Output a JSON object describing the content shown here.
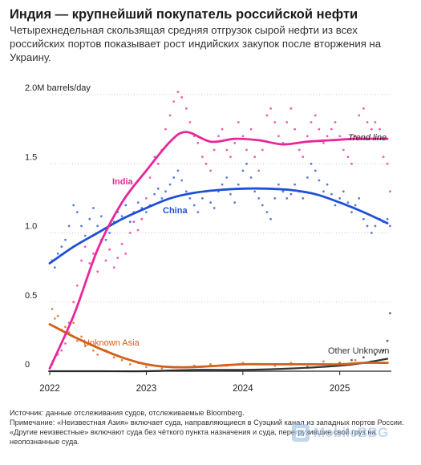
{
  "header": {
    "title": "Индия — крупнейший покупатель российской нефти",
    "subtitle": "Четырехнедельная скользящая средняя отгрузок сырой нефти из всех российских портов показывает рост индийских закупок после вторжения на Украину."
  },
  "footer": {
    "source": "Источник: данные отслеживания судов, отслеживаемые Bloomberg.",
    "note": "Примечание: «Неизвестная Азия» включает суда, направляющиеся в Суэцкий канал из западных портов России. «Другие неизвестные» включают суда без чёткого пункта назначения и суда, перегрузившие свой груз на неопознанные суда."
  },
  "watermark": {
    "text": "MobileBBG"
  },
  "chart_data": {
    "type": "line",
    "unit_label": "2.0M barrels/day",
    "x_ticks": [
      "2022",
      "2023",
      "2024",
      "2025"
    ],
    "y_ticks": [
      "0",
      "0.5",
      "1.0",
      "1.5",
      "2.0M barrels/day"
    ],
    "ylim": [
      0,
      2.0
    ],
    "xlim": [
      "2022-01-01",
      "2025-07-15"
    ],
    "grid": "horizontal-dotted",
    "colors": {
      "India": "#e8279a",
      "China": "#1f4fd8",
      "Unknown Asia": "#d2601a",
      "Other Unknown": "#333333",
      "axis": "#222222"
    },
    "annotations": {
      "trend_line": "Trend line",
      "other_unknown": "Other Unknown"
    },
    "series": [
      {
        "name": "India",
        "trend": [
          [
            "2022-01-01",
            0.02
          ],
          [
            "2022-04-01",
            0.4
          ],
          [
            "2022-07-01",
            0.88
          ],
          [
            "2022-10-01",
            1.22
          ],
          [
            "2023-01-01",
            1.45
          ],
          [
            "2023-04-01",
            1.66
          ],
          [
            "2023-06-01",
            1.73
          ],
          [
            "2023-09-01",
            1.66
          ],
          [
            "2023-12-01",
            1.68
          ],
          [
            "2024-03-01",
            1.67
          ],
          [
            "2024-06-01",
            1.64
          ],
          [
            "2024-09-01",
            1.66
          ],
          [
            "2024-12-01",
            1.67
          ],
          [
            "2025-03-01",
            1.68
          ],
          [
            "2025-06-30",
            1.68
          ]
        ],
        "points": [
          [
            "2022-01-10",
            0.05
          ],
          [
            "2022-01-20",
            0.1
          ],
          [
            "2022-02-01",
            0.12
          ],
          [
            "2022-02-15",
            0.15
          ],
          [
            "2022-03-01",
            0.2
          ],
          [
            "2022-03-15",
            0.35
          ],
          [
            "2022-04-01",
            0.5
          ],
          [
            "2022-04-15",
            0.62
          ],
          [
            "2022-05-01",
            0.8
          ],
          [
            "2022-05-15",
            0.9
          ],
          [
            "2022-06-01",
            0.78
          ],
          [
            "2022-06-15",
            0.85
          ],
          [
            "2022-07-01",
            0.72
          ],
          [
            "2022-07-15",
            0.95
          ],
          [
            "2022-08-01",
            0.8
          ],
          [
            "2022-08-15",
            0.88
          ],
          [
            "2022-09-01",
            0.75
          ],
          [
            "2022-09-15",
            0.82
          ],
          [
            "2022-10-01",
            0.92
          ],
          [
            "2022-10-15",
            0.85
          ],
          [
            "2022-11-01",
            1.0
          ],
          [
            "2022-11-15",
            1.08
          ],
          [
            "2022-12-01",
            1.02
          ],
          [
            "2022-12-15",
            1.1
          ],
          [
            "2023-01-01",
            1.25
          ],
          [
            "2023-01-15",
            1.4
          ],
          [
            "2023-02-01",
            1.55
          ],
          [
            "2023-02-15",
            1.5
          ],
          [
            "2023-03-01",
            1.6
          ],
          [
            "2023-03-15",
            1.75
          ],
          [
            "2023-04-01",
            1.85
          ],
          [
            "2023-04-15",
            1.95
          ],
          [
            "2023-05-01",
            2.02
          ],
          [
            "2023-05-15",
            1.98
          ],
          [
            "2023-06-01",
            1.9
          ],
          [
            "2023-06-15",
            1.8
          ],
          [
            "2023-07-01",
            1.7
          ],
          [
            "2023-07-15",
            1.65
          ],
          [
            "2023-08-01",
            1.55
          ],
          [
            "2023-08-15",
            1.5
          ],
          [
            "2023-09-01",
            1.45
          ],
          [
            "2023-09-15",
            1.6
          ],
          [
            "2023-10-01",
            1.7
          ],
          [
            "2023-10-15",
            1.75
          ],
          [
            "2023-11-01",
            1.6
          ],
          [
            "2023-11-15",
            1.55
          ],
          [
            "2023-12-01",
            1.65
          ],
          [
            "2023-12-15",
            1.8
          ],
          [
            "2024-01-01",
            1.7
          ],
          [
            "2024-01-15",
            1.6
          ],
          [
            "2024-02-01",
            1.75
          ],
          [
            "2024-02-15",
            1.55
          ],
          [
            "2024-03-01",
            1.45
          ],
          [
            "2024-03-15",
            1.6
          ],
          [
            "2024-04-01",
            1.85
          ],
          [
            "2024-04-15",
            1.9
          ],
          [
            "2024-05-01",
            1.8
          ],
          [
            "2024-05-15",
            1.7
          ],
          [
            "2024-06-01",
            1.65
          ],
          [
            "2024-06-15",
            1.8
          ],
          [
            "2024-07-01",
            1.9
          ],
          [
            "2024-07-15",
            1.75
          ],
          [
            "2024-08-01",
            1.6
          ],
          [
            "2024-08-15",
            1.55
          ],
          [
            "2024-09-01",
            1.7
          ],
          [
            "2024-09-15",
            1.8
          ],
          [
            "2024-10-01",
            1.85
          ],
          [
            "2024-10-15",
            1.75
          ],
          [
            "2024-11-01",
            1.65
          ],
          [
            "2024-11-15",
            1.7
          ],
          [
            "2024-12-01",
            1.75
          ],
          [
            "2024-12-15",
            1.8
          ],
          [
            "2025-01-01",
            1.7
          ],
          [
            "2025-01-15",
            1.6
          ],
          [
            "2025-02-01",
            1.55
          ],
          [
            "2025-02-15",
            1.5
          ],
          [
            "2025-03-01",
            1.7
          ],
          [
            "2025-03-15",
            1.85
          ],
          [
            "2025-04-01",
            1.9
          ],
          [
            "2025-04-15",
            1.8
          ],
          [
            "2025-05-01",
            1.75
          ],
          [
            "2025-05-15",
            1.8
          ],
          [
            "2025-06-01",
            1.75
          ],
          [
            "2025-06-15",
            1.55
          ],
          [
            "2025-06-30",
            1.5
          ],
          [
            "2025-07-10",
            1.3
          ]
        ]
      },
      {
        "name": "China",
        "trend": [
          [
            "2022-01-01",
            0.78
          ],
          [
            "2022-04-01",
            0.9
          ],
          [
            "2022-07-01",
            1.0
          ],
          [
            "2022-10-01",
            1.1
          ],
          [
            "2023-01-01",
            1.18
          ],
          [
            "2023-04-01",
            1.25
          ],
          [
            "2023-07-01",
            1.29
          ],
          [
            "2023-10-01",
            1.31
          ],
          [
            "2024-01-01",
            1.32
          ],
          [
            "2024-04-01",
            1.32
          ],
          [
            "2024-07-01",
            1.31
          ],
          [
            "2024-10-01",
            1.28
          ],
          [
            "2025-01-01",
            1.22
          ],
          [
            "2025-04-01",
            1.15
          ],
          [
            "2025-06-30",
            1.07
          ]
        ],
        "points": [
          [
            "2022-01-10",
            0.8
          ],
          [
            "2022-01-20",
            0.75
          ],
          [
            "2022-02-01",
            0.85
          ],
          [
            "2022-02-15",
            0.9
          ],
          [
            "2022-03-01",
            0.95
          ],
          [
            "2022-03-15",
            1.05
          ],
          [
            "2022-04-01",
            1.2
          ],
          [
            "2022-04-15",
            1.15
          ],
          [
            "2022-05-01",
            1.05
          ],
          [
            "2022-05-15",
            0.98
          ],
          [
            "2022-06-01",
            1.1
          ],
          [
            "2022-06-15",
            1.18
          ],
          [
            "2022-07-01",
            1.05
          ],
          [
            "2022-07-15",
            1.12
          ],
          [
            "2022-08-01",
            0.95
          ],
          [
            "2022-08-15",
            1.0
          ],
          [
            "2022-09-01",
            1.08
          ],
          [
            "2022-09-15",
            1.15
          ],
          [
            "2022-10-01",
            1.12
          ],
          [
            "2022-10-15",
            1.2
          ],
          [
            "2022-11-01",
            1.08
          ],
          [
            "2022-11-15",
            1.15
          ],
          [
            "2022-12-01",
            1.22
          ],
          [
            "2022-12-15",
            1.18
          ],
          [
            "2023-01-01",
            1.15
          ],
          [
            "2023-01-15",
            1.2
          ],
          [
            "2023-02-01",
            1.28
          ],
          [
            "2023-02-15",
            1.32
          ],
          [
            "2023-03-01",
            1.25
          ],
          [
            "2023-03-15",
            1.3
          ],
          [
            "2023-04-01",
            1.35
          ],
          [
            "2023-04-15",
            1.4
          ],
          [
            "2023-05-01",
            1.45
          ],
          [
            "2023-05-15",
            1.38
          ],
          [
            "2023-06-01",
            1.3
          ],
          [
            "2023-06-15",
            1.25
          ],
          [
            "2023-07-01",
            1.2
          ],
          [
            "2023-07-15",
            1.15
          ],
          [
            "2023-08-01",
            1.25
          ],
          [
            "2023-08-15",
            1.3
          ],
          [
            "2023-09-01",
            1.22
          ],
          [
            "2023-09-15",
            1.18
          ],
          [
            "2023-10-01",
            1.3
          ],
          [
            "2023-10-15",
            1.35
          ],
          [
            "2023-11-01",
            1.4
          ],
          [
            "2023-11-15",
            1.28
          ],
          [
            "2023-12-01",
            1.22
          ],
          [
            "2023-12-15",
            1.35
          ],
          [
            "2024-01-01",
            1.45
          ],
          [
            "2024-01-15",
            1.5
          ],
          [
            "2024-02-01",
            1.4
          ],
          [
            "2024-02-15",
            1.3
          ],
          [
            "2024-03-01",
            1.25
          ],
          [
            "2024-03-15",
            1.2
          ],
          [
            "2024-04-01",
            1.15
          ],
          [
            "2024-04-15",
            1.1
          ],
          [
            "2024-05-01",
            1.25
          ],
          [
            "2024-05-15",
            1.35
          ],
          [
            "2024-06-01",
            1.3
          ],
          [
            "2024-06-15",
            1.25
          ],
          [
            "2024-07-01",
            1.28
          ],
          [
            "2024-07-15",
            1.35
          ],
          [
            "2024-08-01",
            1.3
          ],
          [
            "2024-08-15",
            1.25
          ],
          [
            "2024-09-01",
            1.4
          ],
          [
            "2024-09-15",
            1.5
          ],
          [
            "2024-10-01",
            1.45
          ],
          [
            "2024-10-15",
            1.38
          ],
          [
            "2024-11-01",
            1.3
          ],
          [
            "2024-11-15",
            1.35
          ],
          [
            "2024-12-01",
            1.28
          ],
          [
            "2024-12-15",
            1.2
          ],
          [
            "2025-01-01",
            1.25
          ],
          [
            "2025-01-15",
            1.3
          ],
          [
            "2025-02-01",
            1.22
          ],
          [
            "2025-02-15",
            1.15
          ],
          [
            "2025-03-01",
            1.2
          ],
          [
            "2025-03-15",
            1.25
          ],
          [
            "2025-04-01",
            1.1
          ],
          [
            "2025-04-15",
            1.05
          ],
          [
            "2025-05-01",
            1.0
          ],
          [
            "2025-05-15",
            1.05
          ],
          [
            "2025-06-01",
            1.1
          ],
          [
            "2025-06-15",
            1.08
          ],
          [
            "2025-06-30",
            1.1
          ],
          [
            "2025-07-10",
            1.05
          ]
        ]
      },
      {
        "name": "Unknown Asia",
        "trend": [
          [
            "2022-01-01",
            0.34
          ],
          [
            "2022-04-01",
            0.25
          ],
          [
            "2022-07-01",
            0.17
          ],
          [
            "2022-10-01",
            0.1
          ],
          [
            "2023-01-01",
            0.05
          ],
          [
            "2023-04-01",
            0.03
          ],
          [
            "2023-07-01",
            0.03
          ],
          [
            "2023-10-01",
            0.04
          ],
          [
            "2024-01-01",
            0.05
          ],
          [
            "2024-04-01",
            0.05
          ],
          [
            "2024-07-01",
            0.05
          ],
          [
            "2024-10-01",
            0.05
          ],
          [
            "2025-01-01",
            0.05
          ],
          [
            "2025-04-01",
            0.06
          ],
          [
            "2025-06-30",
            0.06
          ]
        ],
        "points": [
          [
            "2022-01-10",
            0.45
          ],
          [
            "2022-01-20",
            0.38
          ],
          [
            "2022-02-01",
            0.4
          ],
          [
            "2022-02-15",
            0.3
          ],
          [
            "2022-03-01",
            0.32
          ],
          [
            "2022-03-15",
            0.28
          ],
          [
            "2022-04-01",
            0.35
          ],
          [
            "2022-04-15",
            0.22
          ],
          [
            "2022-05-01",
            0.25
          ],
          [
            "2022-05-15",
            0.18
          ],
          [
            "2022-06-01",
            0.2
          ],
          [
            "2022-06-15",
            0.15
          ],
          [
            "2022-07-01",
            0.12
          ],
          [
            "2022-08-01",
            0.15
          ],
          [
            "2022-09-01",
            0.1
          ],
          [
            "2022-10-01",
            0.08
          ],
          [
            "2022-11-01",
            0.05
          ],
          [
            "2022-12-01",
            0.06
          ],
          [
            "2023-01-01",
            0.03
          ],
          [
            "2023-03-01",
            0.02
          ],
          [
            "2023-05-01",
            0.03
          ],
          [
            "2023-07-01",
            0.04
          ],
          [
            "2023-09-01",
            0.05
          ],
          [
            "2023-11-01",
            0.04
          ],
          [
            "2024-01-01",
            0.06
          ],
          [
            "2024-03-01",
            0.05
          ],
          [
            "2024-05-01",
            0.04
          ],
          [
            "2024-07-01",
            0.06
          ],
          [
            "2024-09-01",
            0.05
          ],
          [
            "2024-11-01",
            0.07
          ],
          [
            "2025-01-01",
            0.06
          ],
          [
            "2025-03-01",
            0.08
          ],
          [
            "2025-05-01",
            0.07
          ],
          [
            "2025-07-01",
            0.06
          ]
        ]
      },
      {
        "name": "Other Unknown",
        "trend": [
          [
            "2022-01-01",
            0.0
          ],
          [
            "2022-07-01",
            0.0
          ],
          [
            "2023-01-01",
            0.0
          ],
          [
            "2023-07-01",
            0.01
          ],
          [
            "2024-01-01",
            0.01
          ],
          [
            "2024-07-01",
            0.02
          ],
          [
            "2025-01-01",
            0.04
          ],
          [
            "2025-04-01",
            0.06
          ],
          [
            "2025-06-30",
            0.09
          ]
        ],
        "points": [
          [
            "2024-09-01",
            0.03
          ],
          [
            "2024-11-01",
            0.05
          ],
          [
            "2025-01-01",
            0.06
          ],
          [
            "2025-02-15",
            0.08
          ],
          [
            "2025-04-01",
            0.1
          ],
          [
            "2025-05-15",
            0.12
          ],
          [
            "2025-06-15",
            0.15
          ],
          [
            "2025-06-30",
            0.22
          ],
          [
            "2025-07-10",
            0.42
          ]
        ]
      }
    ]
  }
}
